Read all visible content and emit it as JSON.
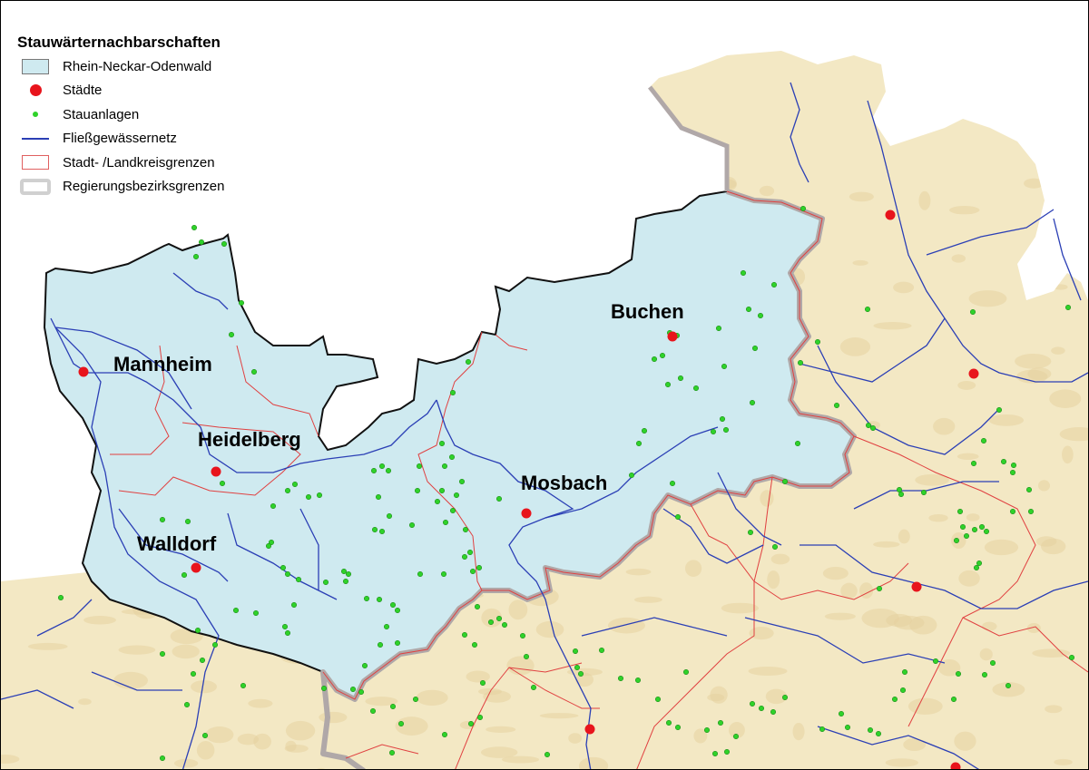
{
  "legend": {
    "title": "Stauwärternachbarschaften",
    "items": [
      {
        "label": "Rhein-Neckar-Odenwald",
        "symbol": "area",
        "color": "#cfeaf0"
      },
      {
        "label": "Städte",
        "symbol": "large-dot",
        "color": "#e8141c"
      },
      {
        "label": "Stauanlagen",
        "symbol": "small-dot",
        "color": "#2fd22a"
      },
      {
        "label": "Fließgewässernetz",
        "symbol": "line",
        "color": "#2b3fb5"
      },
      {
        "label": "Stadt- /Landkreisgrenzen",
        "symbol": "outline",
        "color": "#e06060"
      },
      {
        "label": "Regierungsbezirksgrenzen",
        "symbol": "thick-outline",
        "color": "#c8c8c8"
      }
    ]
  },
  "cities": [
    "Mannheim",
    "Heidelberg",
    "Walldorf",
    "Mosbach",
    "Buchen"
  ],
  "colors": {
    "land": "#f3e8c4",
    "region": "#cfeaf0",
    "outside": "#ffffff"
  }
}
